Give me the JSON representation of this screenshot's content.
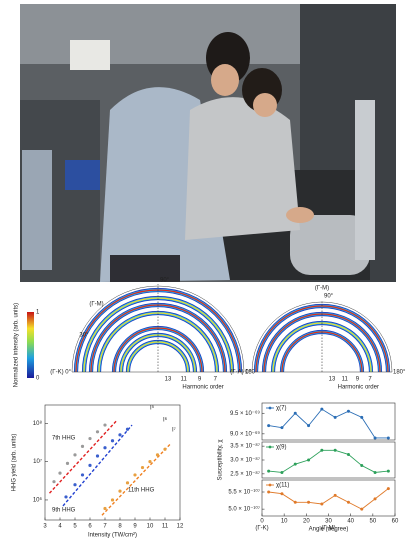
{
  "polar_plots": {
    "colorbar": {
      "label": "Normalized intensity (arb. units)",
      "ticks": [
        1,
        0
      ]
    },
    "left": {
      "top": "90°",
      "direction": "(Γ-M)",
      "angle": "30°",
      "start": "(Γ-K) 0°",
      "end": "180°",
      "orders": [
        "13",
        "11",
        "9",
        "7"
      ],
      "order_label": "Harmonic order"
    },
    "right": {
      "direction": "(Γ-M)",
      "top": "90°",
      "start": "(Γ-A) 0°",
      "end": "180°",
      "orders": [
        "13",
        "11",
        "9",
        "7"
      ],
      "order_label": "Harmonic order"
    }
  },
  "chart_data": [
    {
      "type": "scatter",
      "xlabel": "Intensity (TW/cm²)",
      "ylabel": "HHG yield (arb. units)",
      "log_y": true,
      "xlim": [
        3,
        12
      ],
      "xticks": [
        3,
        4,
        5,
        6,
        7,
        8,
        9,
        10,
        11,
        12
      ],
      "ylim": [
        300000,
        300000000
      ],
      "yticks": [
        {
          "value": 1000000,
          "label": "10⁶"
        },
        {
          "value": 10000000,
          "label": "10⁷"
        },
        {
          "value": 100000000,
          "label": "10⁸"
        }
      ],
      "annotations": [
        "7th HHG",
        "9th HHG",
        "11th HHG",
        "I⁵",
        "I⁶",
        "I⁷"
      ],
      "series": [
        {
          "color": "#9a9a9a",
          "x": [
            3.6,
            4,
            4.5,
            5,
            5.5,
            6,
            6.5,
            7
          ],
          "values": [
            3000000,
            5000000,
            9000000,
            15000000,
            25000000,
            40000000,
            60000000,
            90000000
          ]
        },
        {
          "color": "#3a5fcd",
          "x": [
            4.4,
            5,
            5.5,
            6,
            6.5,
            7,
            7.5,
            8,
            8.5
          ],
          "values": [
            1200000,
            2500000,
            4500000,
            8000000,
            14000000,
            23000000,
            35000000,
            50000000,
            70000000
          ]
        },
        {
          "color": "#e8a040",
          "x": [
            7,
            7.5,
            8,
            8.5,
            9,
            9.5,
            10,
            10.5,
            11
          ],
          "values": [
            600000,
            1000000,
            1700000,
            2800000,
            4500000,
            7000000,
            10000000,
            15000000,
            21000000
          ]
        }
      ],
      "fits": [
        {
          "color": "#e02020",
          "x": [
            3.3,
            7.8
          ],
          "values": [
            1500000,
            120000000
          ]
        },
        {
          "color": "#2040d0",
          "x": [
            4.2,
            8.8
          ],
          "values": [
            700000,
            90000000
          ]
        },
        {
          "color": "#f08020",
          "x": [
            6.8,
            11.4
          ],
          "values": [
            400000,
            30000000
          ]
        }
      ]
    },
    {
      "type": "line",
      "x": [
        3,
        9,
        15,
        21,
        27,
        33,
        39,
        45,
        51,
        57
      ],
      "xlim": [
        0,
        60
      ],
      "ylim": [
        8.85e-69,
        9.75e-69
      ],
      "yticks": [
        {
          "value": 9e-69,
          "label": "9.0 × 10⁻⁶⁹"
        },
        {
          "value": 9.5e-69,
          "label": "9.5 × 10⁻⁶⁹"
        }
      ],
      "series": [
        {
          "name": "χ(7)",
          "color": "#2a6db5",
          "values": [
            9.2e-69,
            9.15e-69,
            9.5e-69,
            9.2e-69,
            9.6e-69,
            9.4e-69,
            9.55e-69,
            9.4e-69,
            8.9e-69,
            8.9e-69
          ]
        }
      ]
    },
    {
      "type": "line",
      "ylabel": "Susceptibility, χ",
      "x": [
        3,
        9,
        15,
        21,
        27,
        33,
        39,
        45,
        51,
        57
      ],
      "xlim": [
        0,
        60
      ],
      "ylim": [
        2.35e-87,
        3.65e-87
      ],
      "yticks": [
        {
          "value": 2.5e-87,
          "label": "2.5 × 10⁻⁸⁷"
        },
        {
          "value": 3e-87,
          "label": "3.0 × 10⁻⁸⁷"
        },
        {
          "value": 3.5e-87,
          "label": "3.5 × 10⁻⁸⁷"
        }
      ],
      "series": [
        {
          "name": "χ(9)",
          "color": "#2ca05a",
          "values": [
            2.6e-87,
            2.55e-87,
            2.85e-87,
            3e-87,
            3.35e-87,
            3.35e-87,
            3.2e-87,
            2.8e-87,
            2.55e-87,
            2.6e-87
          ]
        }
      ]
    },
    {
      "type": "line",
      "xlabel": "Angle (degree)",
      "x": [
        3,
        9,
        15,
        21,
        27,
        33,
        39,
        45,
        51,
        57
      ],
      "xlim": [
        0,
        60
      ],
      "xticks": [
        0,
        10,
        20,
        30,
        40,
        50,
        60
      ],
      "xnotes": [
        "(Γ-K)",
        "(Γ-M)"
      ],
      "ylim": [
        4.8e-107,
        5.85e-107
      ],
      "yticks": [
        {
          "value": 5e-107,
          "label": "5.0 × 10⁻¹⁰⁷"
        },
        {
          "value": 5.5e-107,
          "label": "5.5 × 10⁻¹⁰⁷"
        }
      ],
      "series": [
        {
          "name": "χ(11)",
          "color": "#e07a2a",
          "values": [
            5.5e-107,
            5.45e-107,
            5.2e-107,
            5.2e-107,
            5.15e-107,
            5.4e-107,
            5.2e-107,
            5e-107,
            5.3e-107,
            5.6e-107
          ]
        }
      ]
    }
  ]
}
